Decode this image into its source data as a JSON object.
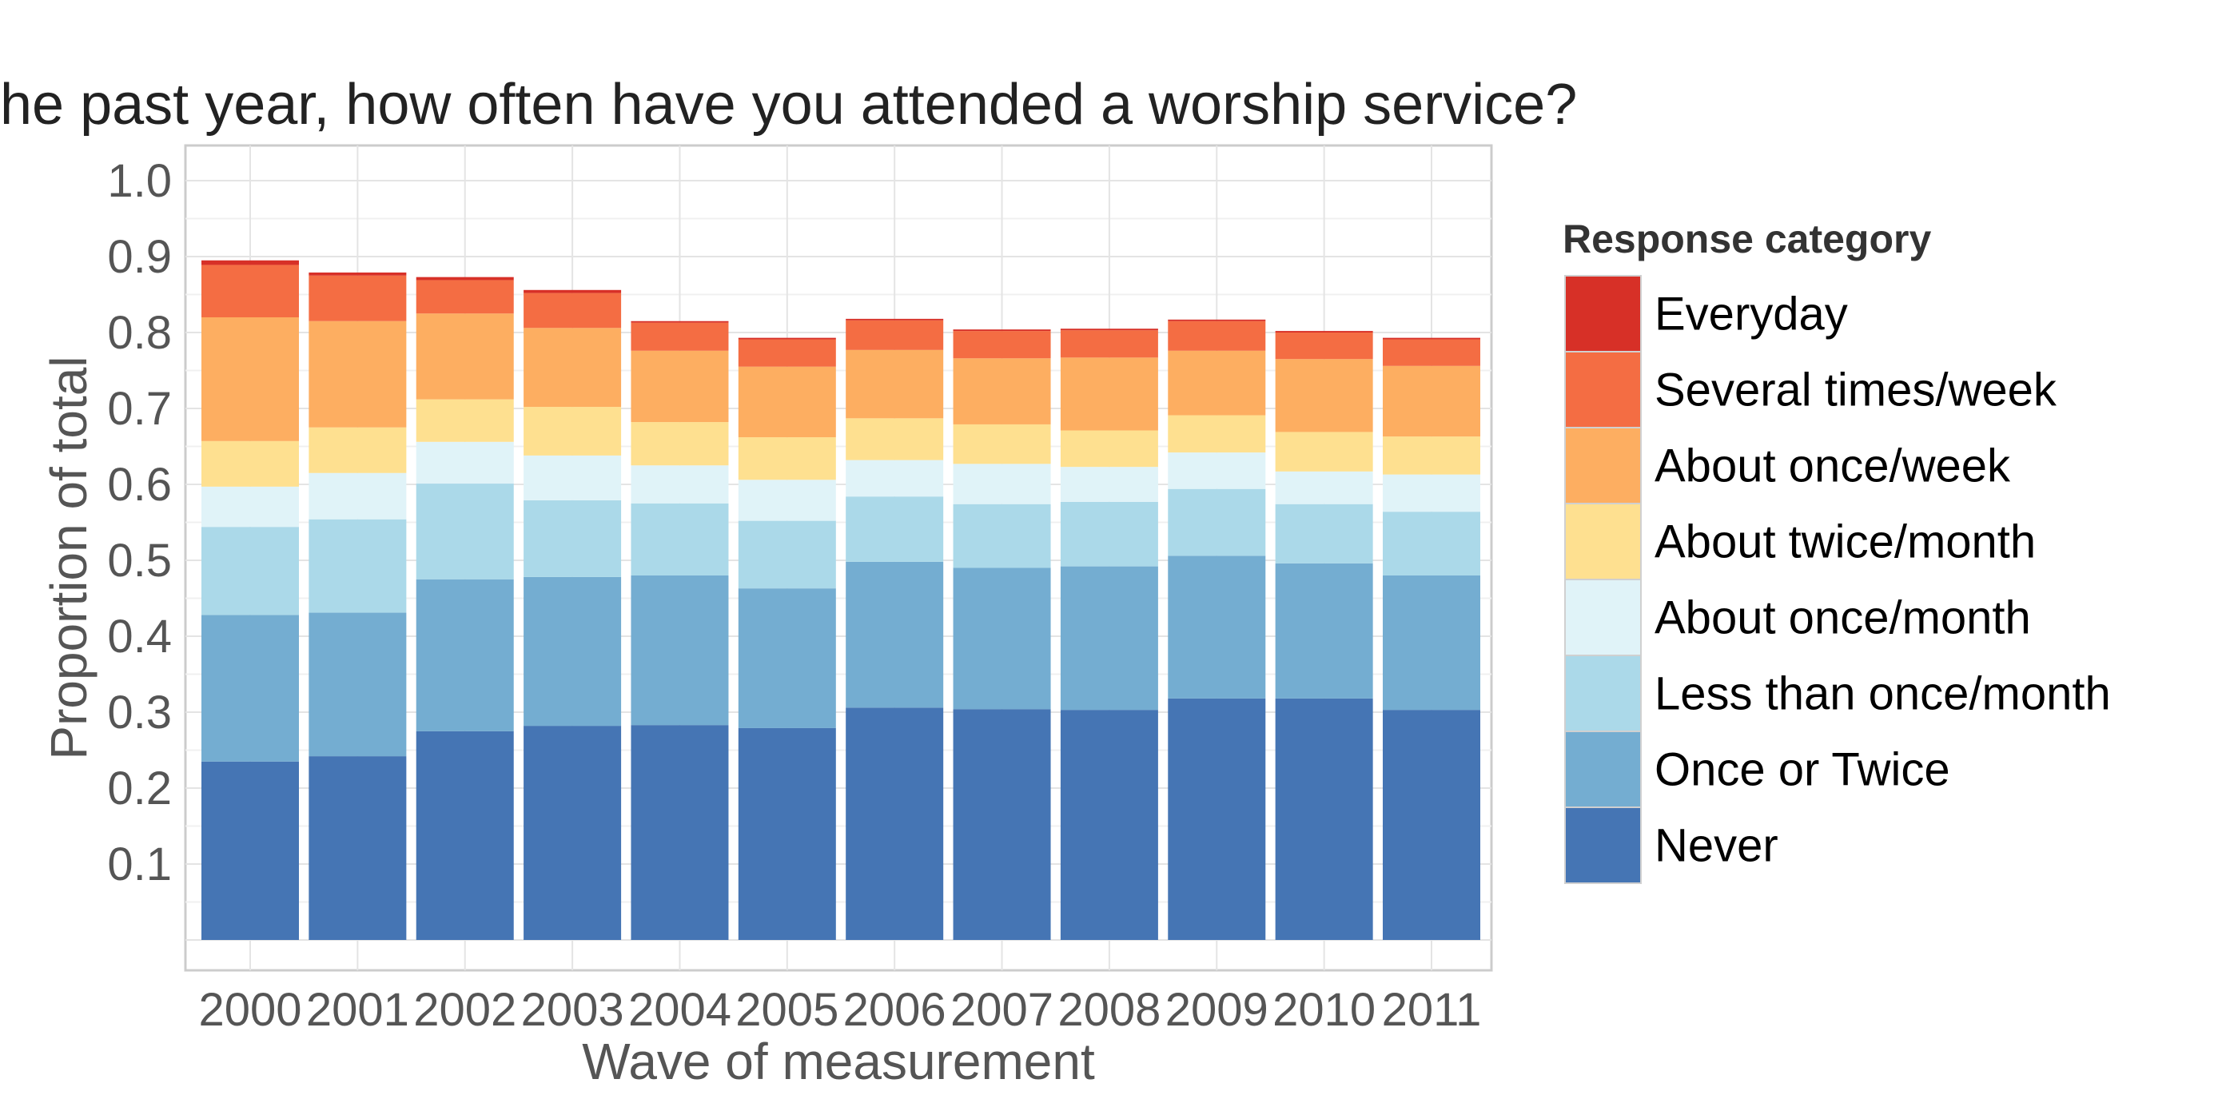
{
  "chart_data": {
    "type": "bar",
    "stacked": true,
    "title": "the past year, how often have you attended a worship service?",
    "xlabel": "Wave of measurement",
    "ylabel": "Proportion of total",
    "categories": [
      "2000",
      "2001",
      "2002",
      "2003",
      "2004",
      "2005",
      "2006",
      "2007",
      "2008",
      "2009",
      "2010",
      "2011"
    ],
    "ylim": [
      0,
      1.0
    ],
    "yticks": [
      "0.1",
      "0.2",
      "0.3",
      "0.4",
      "0.5",
      "0.6",
      "0.7",
      "0.8",
      "0.9",
      "1.0"
    ],
    "grid": true,
    "legend": {
      "title": "Response category",
      "placement": "right"
    },
    "series": [
      {
        "name": "Never",
        "color": "#4575b4",
        "values": [
          0.235,
          0.242,
          0.275,
          0.282,
          0.283,
          0.279,
          0.306,
          0.304,
          0.303,
          0.318,
          0.318,
          0.303
        ]
      },
      {
        "name": "Once or Twice",
        "color": "#74add1",
        "values": [
          0.193,
          0.189,
          0.2,
          0.196,
          0.197,
          0.184,
          0.192,
          0.186,
          0.189,
          0.188,
          0.178,
          0.177
        ]
      },
      {
        "name": "Less than once/month",
        "color": "#abd9e9",
        "values": [
          0.116,
          0.123,
          0.126,
          0.101,
          0.095,
          0.089,
          0.086,
          0.084,
          0.085,
          0.088,
          0.078,
          0.084
        ]
      },
      {
        "name": "About once/month",
        "color": "#e0f3f8",
        "values": [
          0.053,
          0.061,
          0.055,
          0.059,
          0.05,
          0.054,
          0.048,
          0.053,
          0.046,
          0.048,
          0.043,
          0.049
        ]
      },
      {
        "name": "About twice/month",
        "color": "#fee090",
        "values": [
          0.06,
          0.06,
          0.056,
          0.064,
          0.057,
          0.056,
          0.055,
          0.052,
          0.048,
          0.049,
          0.052,
          0.05
        ]
      },
      {
        "name": "About once/week",
        "color": "#fdae61",
        "values": [
          0.163,
          0.14,
          0.113,
          0.104,
          0.094,
          0.093,
          0.09,
          0.087,
          0.096,
          0.085,
          0.096,
          0.093
        ]
      },
      {
        "name": "Several times/week",
        "color": "#f46d43",
        "values": [
          0.069,
          0.06,
          0.044,
          0.046,
          0.037,
          0.036,
          0.039,
          0.036,
          0.036,
          0.039,
          0.035,
          0.035
        ]
      },
      {
        "name": "Everyday",
        "color": "#d73027",
        "values": [
          0.006,
          0.004,
          0.004,
          0.004,
          0.002,
          0.002,
          0.002,
          0.002,
          0.002,
          0.002,
          0.002,
          0.002
        ]
      }
    ]
  }
}
